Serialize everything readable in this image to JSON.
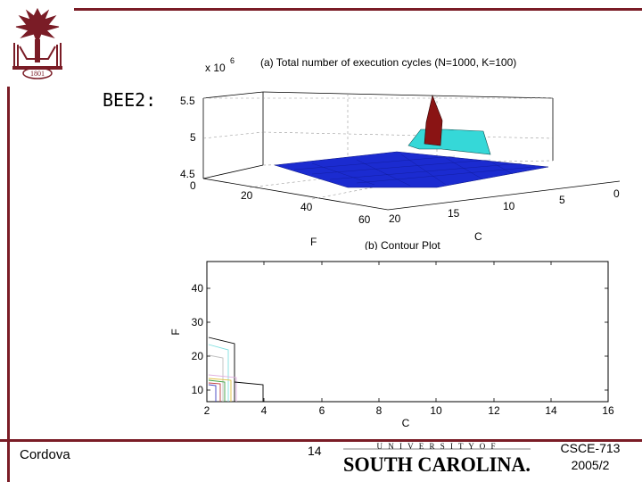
{
  "slide": {
    "title": "BEE2:",
    "colors": {
      "frame": "#7a1c26",
      "accent": "#7a1c26"
    }
  },
  "logo_text": "1801",
  "chart_data": [
    {
      "type": "surface",
      "title": "(a) Total number of execution cycles (N=1000, K=100)",
      "zlabel_scale": "x 10",
      "zlabel_exponent": "6",
      "xlabel": "F",
      "ylabel": "C",
      "z_ticks": [
        "0",
        "4.5",
        "5",
        "5.5"
      ],
      "f_ticks": [
        "20",
        "40",
        "60"
      ],
      "c_ticks": [
        "20",
        "15",
        "10",
        "5",
        "0"
      ],
      "zlim": [
        4.5,
        5.5
      ],
      "grid": true
    },
    {
      "type": "contour",
      "title": "(b) Contour Plot",
      "xlabel": "C",
      "ylabel": "F",
      "x_ticks": [
        "2",
        "4",
        "6",
        "8",
        "10",
        "12",
        "14",
        "16"
      ],
      "y_ticks": [
        "10",
        "20",
        "30",
        "40"
      ],
      "xlim": [
        2,
        16
      ],
      "ylim": [
        5,
        48
      ]
    }
  ],
  "footer": {
    "author": "Cordova",
    "page": "14",
    "course": "CSCE-713",
    "term": "2005/2",
    "university_top": "U N I V E R S I T Y   O F",
    "university_bottom": "SOUTH CAROLINA."
  }
}
